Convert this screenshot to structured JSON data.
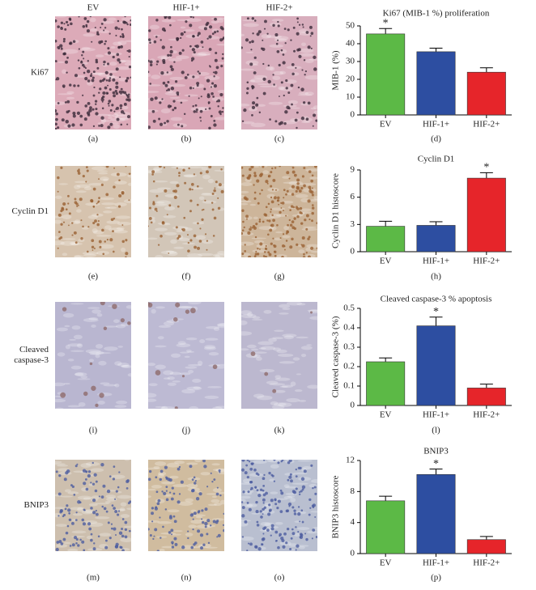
{
  "figure": {
    "column_headers": [
      "EV",
      "HIF-1+",
      "HIF-2+"
    ],
    "row_labels": [
      [
        "Ki67"
      ],
      [
        "Cyclin D1"
      ],
      [
        "Cleaved",
        "caspase-3"
      ],
      [
        "BNIP3"
      ]
    ],
    "panel_labels": [
      [
        "(a)",
        "(b)",
        "(c)"
      ],
      [
        "(e)",
        "(f)",
        "(g)"
      ],
      [
        "(i)",
        "(j)",
        "(k)"
      ],
      [
        "(m)",
        "(n)",
        "(o)"
      ]
    ]
  },
  "chart_data": [
    {
      "type": "bar",
      "title": "Ki67 (MIB-1 %) proliferation",
      "y_label": "MIB-1 (%)",
      "panel_label": "(d)",
      "categories": [
        "EV",
        "HIF-1+",
        "HIF-2+"
      ],
      "colors": [
        "#5cb946",
        "#2d4ea1",
        "#e6252a"
      ],
      "values": [
        45.5,
        35.5,
        24
      ],
      "errors": [
        3,
        2,
        2.5
      ],
      "significance_labels": [
        "*",
        null,
        null
      ],
      "ylim": [
        0,
        50
      ],
      "yticks": [
        0,
        10,
        20,
        30,
        40,
        50
      ]
    },
    {
      "type": "bar",
      "title": "Cyclin D1",
      "y_label": "Cyclin D1 histoscore",
      "panel_label": "(h)",
      "categories": [
        "EV",
        "HIF-1+",
        "HIF-2+"
      ],
      "colors": [
        "#5cb946",
        "#2d4ea1",
        "#e6252a"
      ],
      "values": [
        2.8,
        2.9,
        8.1
      ],
      "errors": [
        0.55,
        0.4,
        0.6
      ],
      "significance_labels": [
        null,
        null,
        "*"
      ],
      "ylim": [
        0,
        9
      ],
      "yticks": [
        0,
        3,
        6,
        9
      ]
    },
    {
      "type": "bar",
      "title": "Cleaved caspase-3 % apoptosis",
      "y_label": "Cleaved caspase-3 (%)",
      "panel_label": "(l)",
      "categories": [
        "EV",
        "HIF-1+",
        "HIF-2+"
      ],
      "colors": [
        "#5cb946",
        "#2d4ea1",
        "#e6252a"
      ],
      "values": [
        0.225,
        0.41,
        0.09
      ],
      "errors": [
        0.02,
        0.045,
        0.02
      ],
      "significance_labels": [
        null,
        "*",
        null
      ],
      "ylim": [
        0,
        0.5
      ],
      "yticks": [
        0,
        0.1,
        0.2,
        0.3,
        0.4,
        0.5
      ]
    },
    {
      "type": "bar",
      "title": "BNIP3",
      "y_label": "BNIP3 histoscore",
      "panel_label": "(p)",
      "categories": [
        "EV",
        "HIF-1+",
        "HIF-2+"
      ],
      "colors": [
        "#5cb946",
        "#2d4ea1",
        "#e6252a"
      ],
      "values": [
        6.8,
        10.2,
        1.8
      ],
      "errors": [
        0.6,
        0.7,
        0.4
      ],
      "significance_labels": [
        null,
        "*",
        null
      ],
      "ylim": [
        0,
        12
      ],
      "yticks": [
        0,
        4,
        8,
        12
      ]
    }
  ]
}
